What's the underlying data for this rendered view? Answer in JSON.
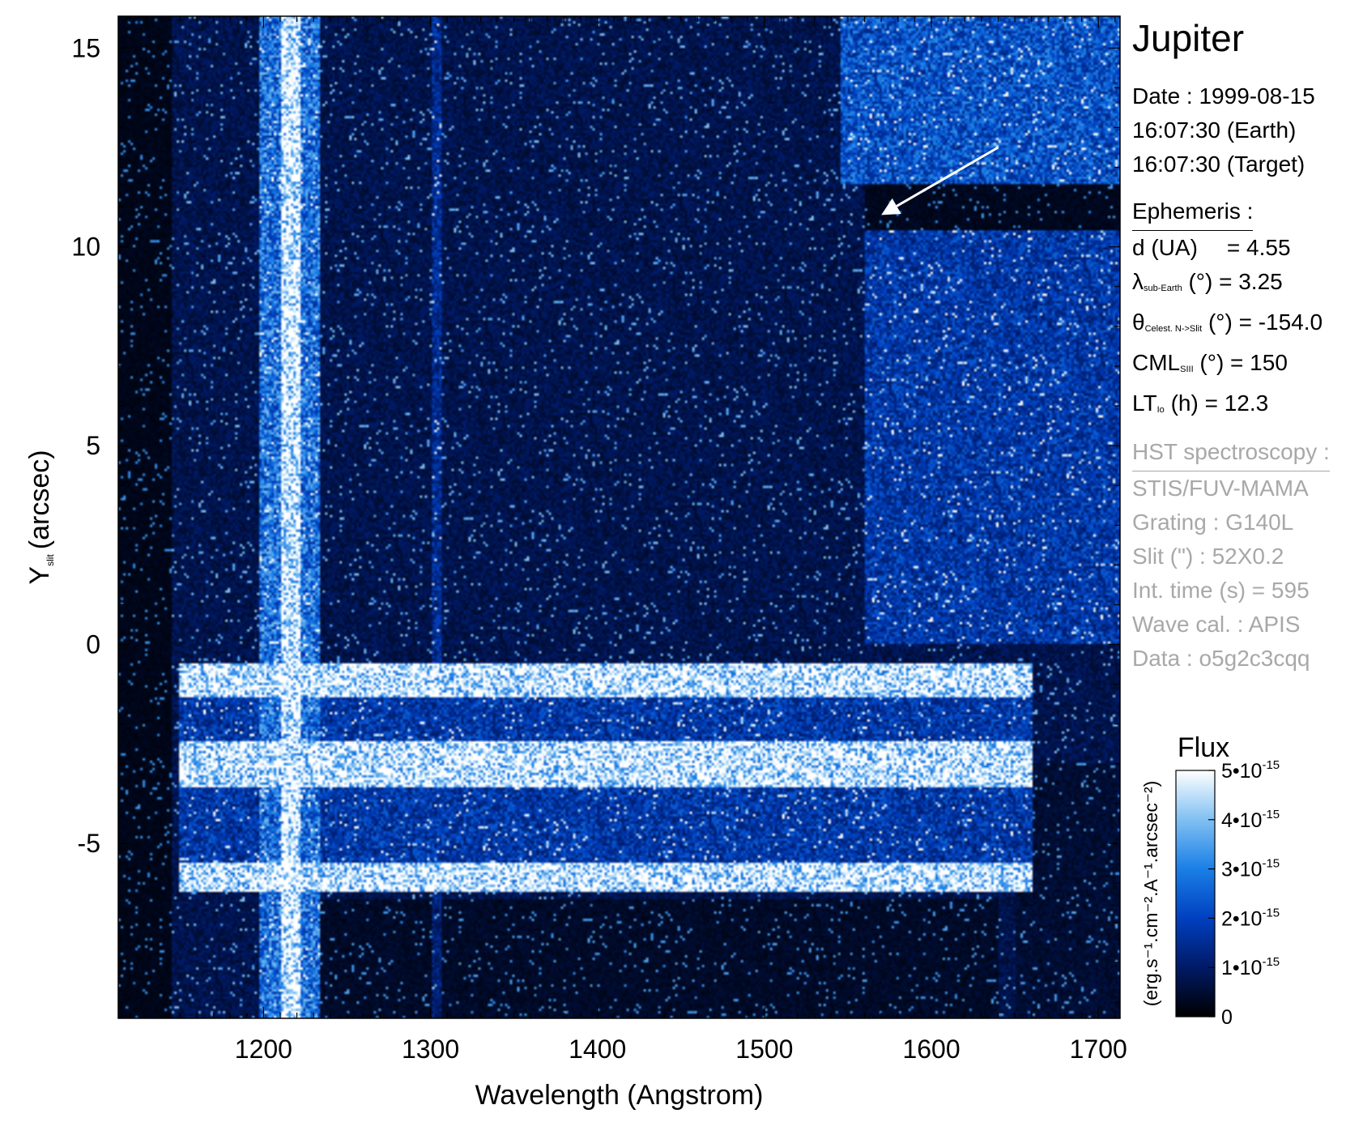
{
  "chart_data": {
    "type": "heatmap",
    "title": "Jupiter",
    "xlabel": "Wavelength (Angstrom)",
    "ylabel_main": "Y",
    "ylabel_sub": "slit",
    "ylabel_unit": "(arcsec)",
    "xlim": [
      1113,
      1713
    ],
    "ylim": [
      -9.4,
      15.8
    ],
    "x_ticks": [
      1200,
      1300,
      1400,
      1500,
      1600,
      1700
    ],
    "x_tick_labels": [
      "1200",
      "1300",
      "1400",
      "1500",
      "1600",
      "1700"
    ],
    "y_ticks": [
      -5,
      0,
      5,
      10,
      15
    ],
    "y_tick_labels": [
      "-5",
      "0",
      "5",
      "10",
      "15"
    ],
    "features": {
      "lyman_alpha_line_angstrom": 1216,
      "oxygen_line_angstrom": 1304,
      "auroral_band_y_arcsec": [
        -6.2,
        -0.5
      ],
      "arrow_from": [
        1640,
        12.5
      ],
      "arrow_to": [
        1570,
        10.8
      ]
    },
    "colorbar": {
      "title": "Flux",
      "unit_label": "(erg.s⁻¹.cm⁻².A⁻¹.arcsec⁻²)",
      "range": [
        0,
        5e-15
      ],
      "tick_values": [
        0,
        1e-15,
        2e-15,
        3e-15,
        4e-15,
        5e-15
      ],
      "tick_labels": [
        "0",
        "1•10",
        "2•10",
        "3•10",
        "4•10",
        "5•10"
      ],
      "tick_exponent": "-15",
      "colors": [
        "#000000",
        "#001a66",
        "#0040c0",
        "#1a7fe6",
        "#80c0f2",
        "#ffffff"
      ]
    }
  },
  "header": {
    "title": "Jupiter",
    "date_line": "Date : 1999-08-15",
    "earth_line": "16:07:30 (Earth)",
    "target_line": "16:07:30 (Target)"
  },
  "ephemeris": {
    "heading": "Ephemeris :",
    "d_label": "d (UA)",
    "d_value": "= 4.55",
    "lambda_symbol": "λ",
    "lambda_sub": "sub-Earth",
    "lambda_rest": " (°)  = 3.25",
    "theta_symbol": "θ",
    "theta_sub": "Celest. N->Slit",
    "theta_rest": " (°) = -154.0",
    "cml_label": "CML",
    "cml_sub": "SIII",
    "cml_rest": " (°) = 150",
    "lt_label": "LT",
    "lt_sub": "Io",
    "lt_rest": " (h) = 12.3"
  },
  "observation": {
    "heading": "HST spectroscopy :",
    "instrument": "STIS/FUV-MAMA",
    "grating": "Grating : G140L",
    "slit": "Slit (\") : 52X0.2",
    "int_time": "Int. time (s) = 595",
    "wave_cal": "Wave cal. : APIS",
    "data_id": "Data : o5g2c3cqq"
  }
}
